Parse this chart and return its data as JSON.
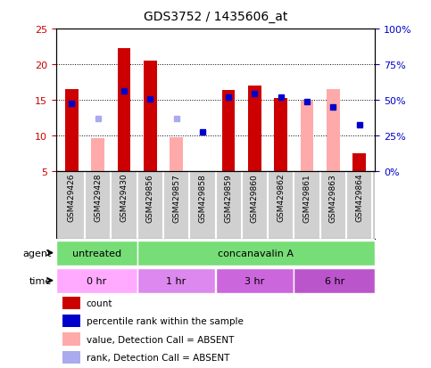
{
  "title": "GDS3752 / 1435606_at",
  "samples": [
    "GSM429426",
    "GSM429428",
    "GSM429430",
    "GSM429856",
    "GSM429857",
    "GSM429858",
    "GSM429859",
    "GSM429860",
    "GSM429862",
    "GSM429861",
    "GSM429863",
    "GSM429864"
  ],
  "count_values": [
    16.5,
    null,
    22.2,
    20.5,
    null,
    null,
    16.4,
    17.0,
    15.2,
    null,
    null,
    7.5
  ],
  "count_absent_values": [
    null,
    9.6,
    null,
    null,
    9.7,
    null,
    null,
    null,
    null,
    14.8,
    16.5,
    null
  ],
  "percentile_rank": [
    14.5,
    null,
    16.2,
    15.1,
    null,
    10.4,
    15.3,
    15.8,
    15.3,
    14.7,
    14.0,
    11.5
  ],
  "percentile_absent": [
    null,
    12.3,
    null,
    null,
    12.3,
    null,
    null,
    null,
    null,
    null,
    null,
    null
  ],
  "ylim_left": [
    5,
    25
  ],
  "ylim_right": [
    0,
    100
  ],
  "yticks_left": [
    5,
    10,
    15,
    20,
    25
  ],
  "yticks_right": [
    0,
    25,
    50,
    75,
    100
  ],
  "ytick_labels_right": [
    "0%",
    "25%",
    "50%",
    "75%",
    "100%"
  ],
  "color_count": "#cc0000",
  "color_count_absent": "#ffaaaa",
  "color_rank": "#0000cc",
  "color_rank_absent": "#aaaaee",
  "bar_width": 0.5,
  "marker_size": 5,
  "color_green": "#77dd77",
  "color_time0": "#ffaaff",
  "color_time1": "#dd88ee",
  "color_time2": "#cc66dd",
  "color_time3": "#bb55cc",
  "color_gray_tick": "#d0d0d0",
  "xlabel_color_left": "#cc0000",
  "xlabel_color_right": "#0000cc"
}
